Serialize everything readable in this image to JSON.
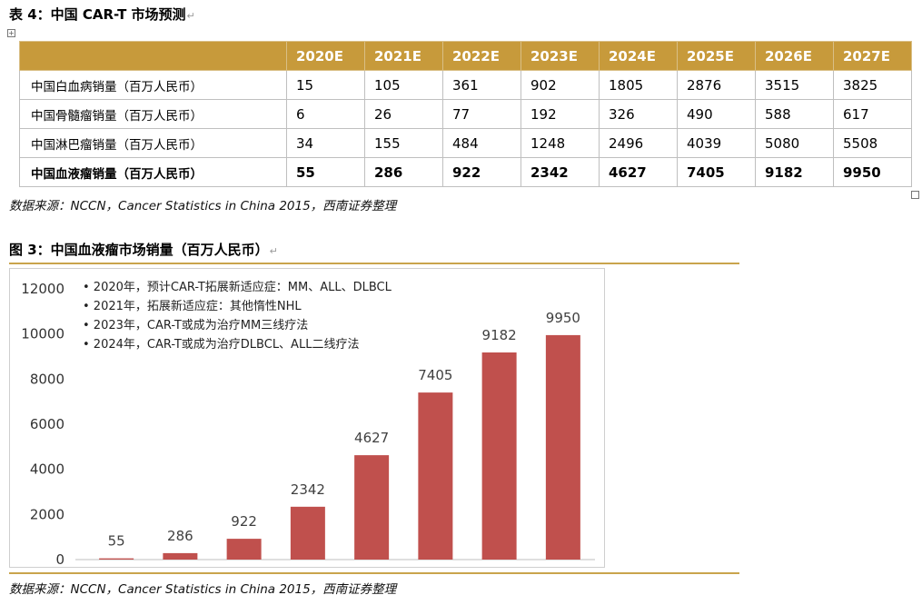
{
  "table": {
    "caption": "表 4：中国 CAR-T 市场预测",
    "columns": [
      "2020E",
      "2021E",
      "2022E",
      "2023E",
      "2024E",
      "2025E",
      "2026E",
      "2027E"
    ],
    "rows": [
      {
        "label": "中国白血病销量（百万人民币）",
        "values": [
          "15",
          "105",
          "361",
          "902",
          "1805",
          "2876",
          "3515",
          "3825"
        ]
      },
      {
        "label": "中国骨髓瘤销量（百万人民币）",
        "values": [
          "6",
          "26",
          "77",
          "192",
          "326",
          "490",
          "588",
          "617"
        ]
      },
      {
        "label": "中国淋巴瘤销量（百万人民币）",
        "values": [
          "34",
          "155",
          "484",
          "1248",
          "2496",
          "4039",
          "5080",
          "5508"
        ]
      },
      {
        "label": "中国血液瘤销量（百万人民币）",
        "values": [
          "55",
          "286",
          "922",
          "2342",
          "4627",
          "7405",
          "9182",
          "9950"
        ]
      }
    ],
    "source": "数据来源：NCCN，Cancer Statistics in China 2015，西南证券整理"
  },
  "figure": {
    "caption": "图 3：中国血液瘤市场销量（百万人民币）",
    "source": "数据来源：NCCN，Cancer Statistics in China 2015，西南证券整理"
  },
  "chart_data": {
    "type": "bar",
    "title": "",
    "categories": [
      "2020E",
      "2021E",
      "2022E",
      "2023E",
      "2024E",
      "2025E",
      "2026E",
      "2027E"
    ],
    "values": [
      55,
      286,
      922,
      2342,
      4627,
      7405,
      9182,
      9950
    ],
    "data_labels": [
      "55",
      "286",
      "922",
      "2342",
      "4627",
      "7405",
      "9182",
      "9950"
    ],
    "ylim": [
      0,
      12000
    ],
    "yticks": [
      "0",
      "2000",
      "4000",
      "6000",
      "8000",
      "10000",
      "12000"
    ],
    "xlabel": "",
    "ylabel": "",
    "bar_color": "#c0504d",
    "grid": false,
    "annotations": [
      "• 2020年，预计CAR-T拓展新适应症：MM、ALL、DLBCL",
      "• 2021年，拓展新适应症：其他惰性NHL",
      "• 2023年，CAR-T或成为治疗MM三线疗法",
      "• 2024年，CAR-T或成为治疗DLBCL、ALL二线疗法"
    ]
  },
  "colors": {
    "header_bg": "#c79a3b",
    "rule": "#c9a44c",
    "bar": "#c0504d"
  }
}
